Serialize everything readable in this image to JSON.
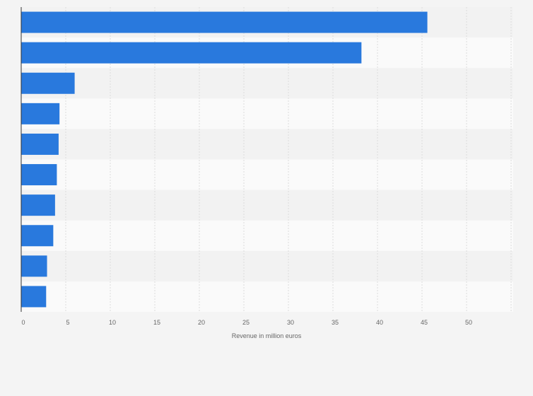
{
  "chart_data": {
    "type": "bar",
    "orientation": "horizontal",
    "title": "",
    "xlabel": "Revenue in million euros",
    "ylabel": "",
    "categories": [
      "",
      "",
      "",
      "",
      "",
      "",
      "",
      "",
      "",
      ""
    ],
    "values": [
      45.6,
      38.2,
      6.0,
      4.3,
      4.2,
      4.0,
      3.8,
      3.6,
      2.9,
      2.8
    ],
    "xlim": [
      0,
      55
    ],
    "xticks": [
      0,
      5,
      10,
      15,
      20,
      25,
      30,
      35,
      40,
      45,
      50
    ],
    "grid": true,
    "bar_color": "#2979dd",
    "band_colors": [
      "#f2f2f2",
      "#fafafa"
    ]
  }
}
